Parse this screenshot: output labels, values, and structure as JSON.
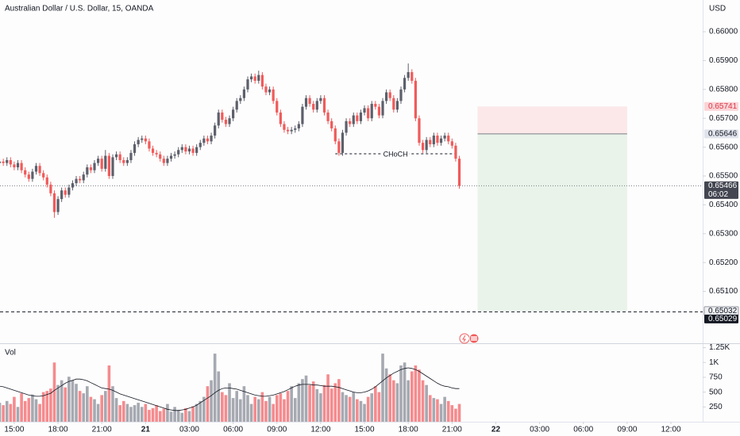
{
  "chart_data": {
    "type": "candlestick",
    "title": "Australian Dollar / U.S. Dollar, 15, OANDA",
    "currency": "USD",
    "up_color": "#5d606b",
    "down_color": "#f05a5a",
    "xlim": [
      0.1,
      192.7
    ],
    "xticks": [
      {
        "value": 4,
        "label": "15:00"
      },
      {
        "value": 16,
        "label": "18:00"
      },
      {
        "value": 28,
        "label": "21:00"
      },
      {
        "value": 40,
        "label": "21"
      },
      {
        "value": 52,
        "label": "03:00"
      },
      {
        "value": 64,
        "label": "06:00"
      },
      {
        "value": 76,
        "label": "09:00"
      },
      {
        "value": 88,
        "label": "12:00"
      },
      {
        "value": 100,
        "label": "15:00"
      },
      {
        "value": 112,
        "label": "18:00"
      },
      {
        "value": 124,
        "label": "21:00"
      },
      {
        "value": 136,
        "label": "22"
      },
      {
        "value": 148,
        "label": "03:00"
      },
      {
        "value": 160,
        "label": "06:00"
      },
      {
        "value": 172,
        "label": "09:00"
      },
      {
        "value": 184,
        "label": "12:00"
      }
    ],
    "ylim": [
      0.64923,
      0.6611
    ],
    "yticks": [
      {
        "value": 0.651,
        "label": "0.65100"
      },
      {
        "value": 0.652,
        "label": "0.65200"
      },
      {
        "value": 0.653,
        "label": "0.65300"
      },
      {
        "value": 0.654,
        "label": "0.65400"
      },
      {
        "value": 0.655,
        "label": "0.65500"
      },
      {
        "value": 0.656,
        "label": "0.65600"
      },
      {
        "value": 0.657,
        "label": "0.65700"
      },
      {
        "value": 0.658,
        "label": "0.65800"
      },
      {
        "value": 0.659,
        "label": "0.65900"
      },
      {
        "value": 0.66,
        "label": "0.66000"
      }
    ],
    "open": [
      0.65545,
      0.6555,
      0.65545,
      0.65555,
      0.6554,
      0.6553,
      0.65545,
      0.6552,
      0.65505,
      0.6549,
      0.65515,
      0.65535,
      0.6551,
      0.65495,
      0.6547,
      0.6544,
      0.65375,
      0.6542,
      0.6545,
      0.65435,
      0.6546,
      0.65475,
      0.6549,
      0.65485,
      0.65505,
      0.6553,
      0.6552,
      0.65545,
      0.6556,
      0.65525,
      0.6557,
      0.655,
      0.65565,
      0.65575,
      0.65555,
      0.65545,
      0.65555,
      0.6558,
      0.6561,
      0.65625,
      0.6563,
      0.6562,
      0.65595,
      0.6558,
      0.65575,
      0.6556,
      0.65545,
      0.6556,
      0.6557,
      0.65575,
      0.6559,
      0.656,
      0.65585,
      0.65595,
      0.6558,
      0.656,
      0.65615,
      0.6563,
      0.6562,
      0.6564,
      0.65675,
      0.6572,
      0.65695,
      0.6568,
      0.657,
      0.6573,
      0.6576,
      0.6577,
      0.658,
      0.65835,
      0.65845,
      0.6583,
      0.6585,
      0.6581,
      0.6579,
      0.658,
      0.6576,
      0.6572,
      0.6568,
      0.6566,
      0.65655,
      0.6566,
      0.65665,
      0.6568,
      0.6574,
      0.6577,
      0.6575,
      0.6573,
      0.6576,
      0.6577,
      0.6572,
      0.6569,
      0.65665,
      0.6562,
      0.6558,
      0.6565,
      0.6569,
      0.6568,
      0.6571,
      0.6569,
      0.6572,
      0.65735,
      0.657,
      0.6575,
      0.6574,
      0.6571,
      0.6576,
      0.6579,
      0.6577,
      0.6573,
      0.6576,
      0.658,
      0.6584,
      0.6586,
      0.6583,
      0.657,
      0.65615,
      0.6559,
      0.65625,
      0.6561,
      0.6564,
      0.65615,
      0.6563,
      0.6564,
      0.6562,
      0.65605,
      0.6556
    ],
    "high": [
      0.6556,
      0.6556,
      0.65565,
      0.65565,
      0.6555,
      0.65555,
      0.65555,
      0.6553,
      0.65515,
      0.65525,
      0.65545,
      0.65545,
      0.6552,
      0.65505,
      0.6548,
      0.6545,
      0.6543,
      0.6546,
      0.6546,
      0.6547,
      0.65485,
      0.655,
      0.655,
      0.65515,
      0.6554,
      0.6554,
      0.65555,
      0.6557,
      0.6557,
      0.6559,
      0.6558,
      0.65575,
      0.65585,
      0.65585,
      0.65565,
      0.65565,
      0.6559,
      0.6562,
      0.65635,
      0.6564,
      0.6564,
      0.6563,
      0.65605,
      0.6559,
      0.65585,
      0.6557,
      0.6557,
      0.6558,
      0.65585,
      0.656,
      0.6561,
      0.6561,
      0.65605,
      0.65605,
      0.6561,
      0.65625,
      0.6564,
      0.6564,
      0.6565,
      0.65685,
      0.6573,
      0.6573,
      0.65705,
      0.6571,
      0.6574,
      0.6577,
      0.6578,
      0.6581,
      0.65845,
      0.65855,
      0.65855,
      0.65865,
      0.6586,
      0.6582,
      0.6581,
      0.6581,
      0.6577,
      0.6573,
      0.6569,
      0.6567,
      0.6567,
      0.65675,
      0.6569,
      0.6575,
      0.6578,
      0.6578,
      0.6576,
      0.6577,
      0.6578,
      0.6578,
      0.6573,
      0.657,
      0.65675,
      0.6563,
      0.6566,
      0.657,
      0.657,
      0.6572,
      0.6572,
      0.6573,
      0.65745,
      0.65745,
      0.6576,
      0.6576,
      0.6575,
      0.6577,
      0.658,
      0.658,
      0.6578,
      0.6577,
      0.6581,
      0.6585,
      0.6589,
      0.6587,
      0.6584,
      0.6571,
      0.65625,
      0.65635,
      0.65635,
      0.6565,
      0.6565,
      0.6564,
      0.6565,
      0.6565,
      0.6563,
      0.65615,
      0.6557
    ],
    "low": [
      0.65535,
      0.65535,
      0.65535,
      0.6553,
      0.6552,
      0.6552,
      0.6551,
      0.65495,
      0.6548,
      0.6548,
      0.65505,
      0.655,
      0.65485,
      0.6546,
      0.6543,
      0.65355,
      0.65365,
      0.6541,
      0.65425,
      0.65425,
      0.6545,
      0.65465,
      0.65475,
      0.65475,
      0.65495,
      0.6551,
      0.6551,
      0.65535,
      0.65515,
      0.65515,
      0.6549,
      0.6549,
      0.65555,
      0.65545,
      0.65535,
      0.65535,
      0.65545,
      0.6557,
      0.656,
      0.65615,
      0.6561,
      0.65585,
      0.6557,
      0.65565,
      0.6555,
      0.65535,
      0.65535,
      0.6555,
      0.6556,
      0.65565,
      0.6558,
      0.65575,
      0.65575,
      0.6557,
      0.6557,
      0.6559,
      0.65605,
      0.6561,
      0.6561,
      0.6563,
      0.65665,
      0.65685,
      0.6567,
      0.6567,
      0.6569,
      0.6572,
      0.6575,
      0.6576,
      0.6579,
      0.65825,
      0.6582,
      0.6582,
      0.658,
      0.6578,
      0.6578,
      0.6575,
      0.6571,
      0.6567,
      0.6565,
      0.65645,
      0.65645,
      0.6565,
      0.65655,
      0.6567,
      0.6573,
      0.6574,
      0.6572,
      0.6572,
      0.6575,
      0.6571,
      0.6568,
      0.65655,
      0.6561,
      0.6557,
      0.6557,
      0.6564,
      0.6567,
      0.6567,
      0.6568,
      0.6568,
      0.6571,
      0.6569,
      0.6569,
      0.6573,
      0.657,
      0.657,
      0.6575,
      0.6576,
      0.6572,
      0.6572,
      0.6575,
      0.6579,
      0.6583,
      0.6582,
      0.6569,
      0.65605,
      0.6558,
      0.6558,
      0.656,
      0.656,
      0.65605,
      0.65605,
      0.6562,
      0.6561,
      0.65595,
      0.6555,
      0.65456
    ],
    "close": [
      0.6555,
      0.65545,
      0.65555,
      0.6554,
      0.6553,
      0.65545,
      0.6552,
      0.65505,
      0.6549,
      0.65515,
      0.65535,
      0.6551,
      0.65495,
      0.6547,
      0.6544,
      0.65375,
      0.6542,
      0.6545,
      0.65435,
      0.6546,
      0.65475,
      0.6549,
      0.65485,
      0.65505,
      0.6553,
      0.6552,
      0.65545,
      0.6556,
      0.65525,
      0.6557,
      0.655,
      0.65565,
      0.65575,
      0.65555,
      0.65545,
      0.65555,
      0.6558,
      0.6561,
      0.65625,
      0.6563,
      0.6562,
      0.65595,
      0.6558,
      0.65575,
      0.6556,
      0.65545,
      0.6556,
      0.6557,
      0.65575,
      0.6559,
      0.656,
      0.65585,
      0.65595,
      0.6558,
      0.656,
      0.65615,
      0.6563,
      0.6562,
      0.6564,
      0.65675,
      0.6572,
      0.65695,
      0.6568,
      0.657,
      0.6573,
      0.6576,
      0.6577,
      0.658,
      0.65835,
      0.65845,
      0.6583,
      0.6585,
      0.6581,
      0.6579,
      0.658,
      0.6576,
      0.6572,
      0.6568,
      0.6566,
      0.65655,
      0.6566,
      0.65665,
      0.6568,
      0.6574,
      0.6577,
      0.6575,
      0.6573,
      0.6576,
      0.6577,
      0.6572,
      0.6569,
      0.65665,
      0.6562,
      0.6558,
      0.6565,
      0.6569,
      0.6568,
      0.6571,
      0.6569,
      0.6572,
      0.65735,
      0.657,
      0.6575,
      0.6574,
      0.6571,
      0.6576,
      0.6579,
      0.6577,
      0.6573,
      0.6576,
      0.658,
      0.6584,
      0.6586,
      0.6583,
      0.657,
      0.65615,
      0.6559,
      0.65625,
      0.6561,
      0.6564,
      0.65615,
      0.6563,
      0.6564,
      0.6562,
      0.65605,
      0.6556,
      0.65466
    ],
    "last": {
      "price": 0.65466,
      "countdown": "06:02"
    },
    "hline": {
      "price": 0.65029
    },
    "position": {
      "stop": 0.65741,
      "entry": 0.65646,
      "target": 0.65032,
      "start": 131,
      "end": 172,
      "stop_color": "#fce8e9",
      "target_color": "#e9f3ea"
    },
    "choch": {
      "text": "CHoCH",
      "price": 0.65577,
      "start": 92,
      "end": 125
    },
    "volume": {
      "label": "Vol",
      "up_color": "#a6a9b1",
      "down_color": "#f58b8e",
      "ma_color": "#131722",
      "ylim": [
        0,
        1325
      ],
      "yticks": [
        250,
        500,
        750,
        {
          "value": 1000,
          "label": "1K"
        },
        {
          "value": 1250,
          "label": "1.25K"
        }
      ],
      "values": [
        320,
        280,
        350,
        300,
        420,
        250,
        480,
        350,
        400,
        460,
        380,
        300,
        500,
        520,
        560,
        1000,
        620,
        700,
        580,
        760,
        700,
        640,
        520,
        480,
        600,
        420,
        380,
        300,
        450,
        520,
        950,
        600,
        400,
        280,
        350,
        300,
        250,
        280,
        320,
        250,
        300,
        200,
        230,
        280,
        180,
        220,
        300,
        170,
        250,
        200,
        150,
        230,
        180,
        260,
        300,
        350,
        420,
        600,
        700,
        1150,
        850,
        500,
        450,
        650,
        400,
        520,
        380,
        600,
        450,
        300,
        420,
        380,
        500,
        350,
        420,
        300,
        450,
        480,
        380,
        520,
        600,
        400,
        650,
        720,
        780,
        620,
        680,
        550,
        480,
        620,
        800,
        560,
        650,
        720,
        500,
        450,
        420,
        500,
        380,
        350,
        300,
        420,
        480,
        600,
        500,
        1150,
        900,
        800,
        700,
        650,
        950,
        1000,
        700,
        850,
        950,
        880,
        700,
        620,
        450,
        400,
        380,
        300,
        420,
        350,
        280,
        220,
        300
      ],
      "ma": [
        600,
        590,
        570,
        550,
        530,
        510,
        490,
        470,
        450,
        440,
        430,
        430,
        440,
        460,
        480,
        530,
        570,
        610,
        650,
        680,
        700,
        720,
        720,
        710,
        690,
        660,
        630,
        600,
        570,
        560,
        550,
        530,
        500,
        470,
        450,
        430,
        410,
        390,
        370,
        350,
        330,
        310,
        290,
        270,
        250,
        230,
        210,
        200,
        190,
        190,
        200,
        210,
        230,
        250,
        280,
        320,
        360,
        400,
        440,
        490,
        530,
        560,
        570,
        570,
        560,
        550,
        530,
        510,
        490,
        470,
        450,
        440,
        430,
        430,
        440,
        450,
        470,
        490,
        510,
        540,
        570,
        600,
        620,
        630,
        630,
        630,
        620,
        620,
        610,
        600,
        600,
        600,
        590,
        580,
        560,
        540,
        520,
        500,
        490,
        490,
        500,
        520,
        550,
        590,
        640,
        690,
        740,
        780,
        820,
        850,
        880,
        900,
        910,
        900,
        880,
        850,
        810,
        770,
        730,
        690,
        650,
        620,
        600,
        590,
        570,
        560,
        560
      ]
    }
  }
}
